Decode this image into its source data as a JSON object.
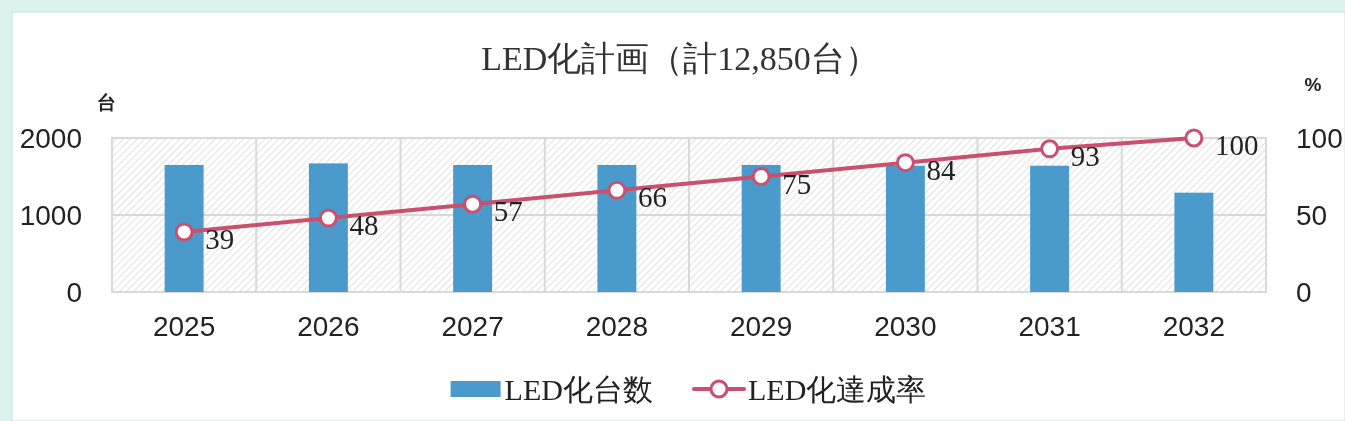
{
  "chart_data": {
    "type": "bar",
    "title": "LED化計画（計12,850台）",
    "ylabel": "台",
    "y2label": "%",
    "categories": [
      "2025",
      "2026",
      "2027",
      "2028",
      "2029",
      "2030",
      "2031",
      "2032"
    ],
    "series": [
      {
        "name": "LED化台数",
        "color": "#4a9acb",
        "values": [
          1650,
          1670,
          1650,
          1650,
          1650,
          1640,
          1640,
          1290
        ]
      },
      {
        "name": "LED化達成率",
        "type": "line",
        "axis": "y2",
        "color": "#c9506f",
        "marker": "circle",
        "values": [
          39,
          48,
          57,
          66,
          75,
          84,
          93,
          100
        ],
        "value_labels": [
          "39",
          "48",
          "57",
          "66",
          "75",
          "84",
          "93",
          "100"
        ]
      }
    ],
    "ylim": [
      0,
      2000
    ],
    "yticks": [
      0,
      1000,
      2000
    ],
    "y2lim": [
      0,
      100
    ],
    "y2ticks": [
      0,
      50,
      100
    ],
    "grid": true,
    "legend": "bottom"
  }
}
